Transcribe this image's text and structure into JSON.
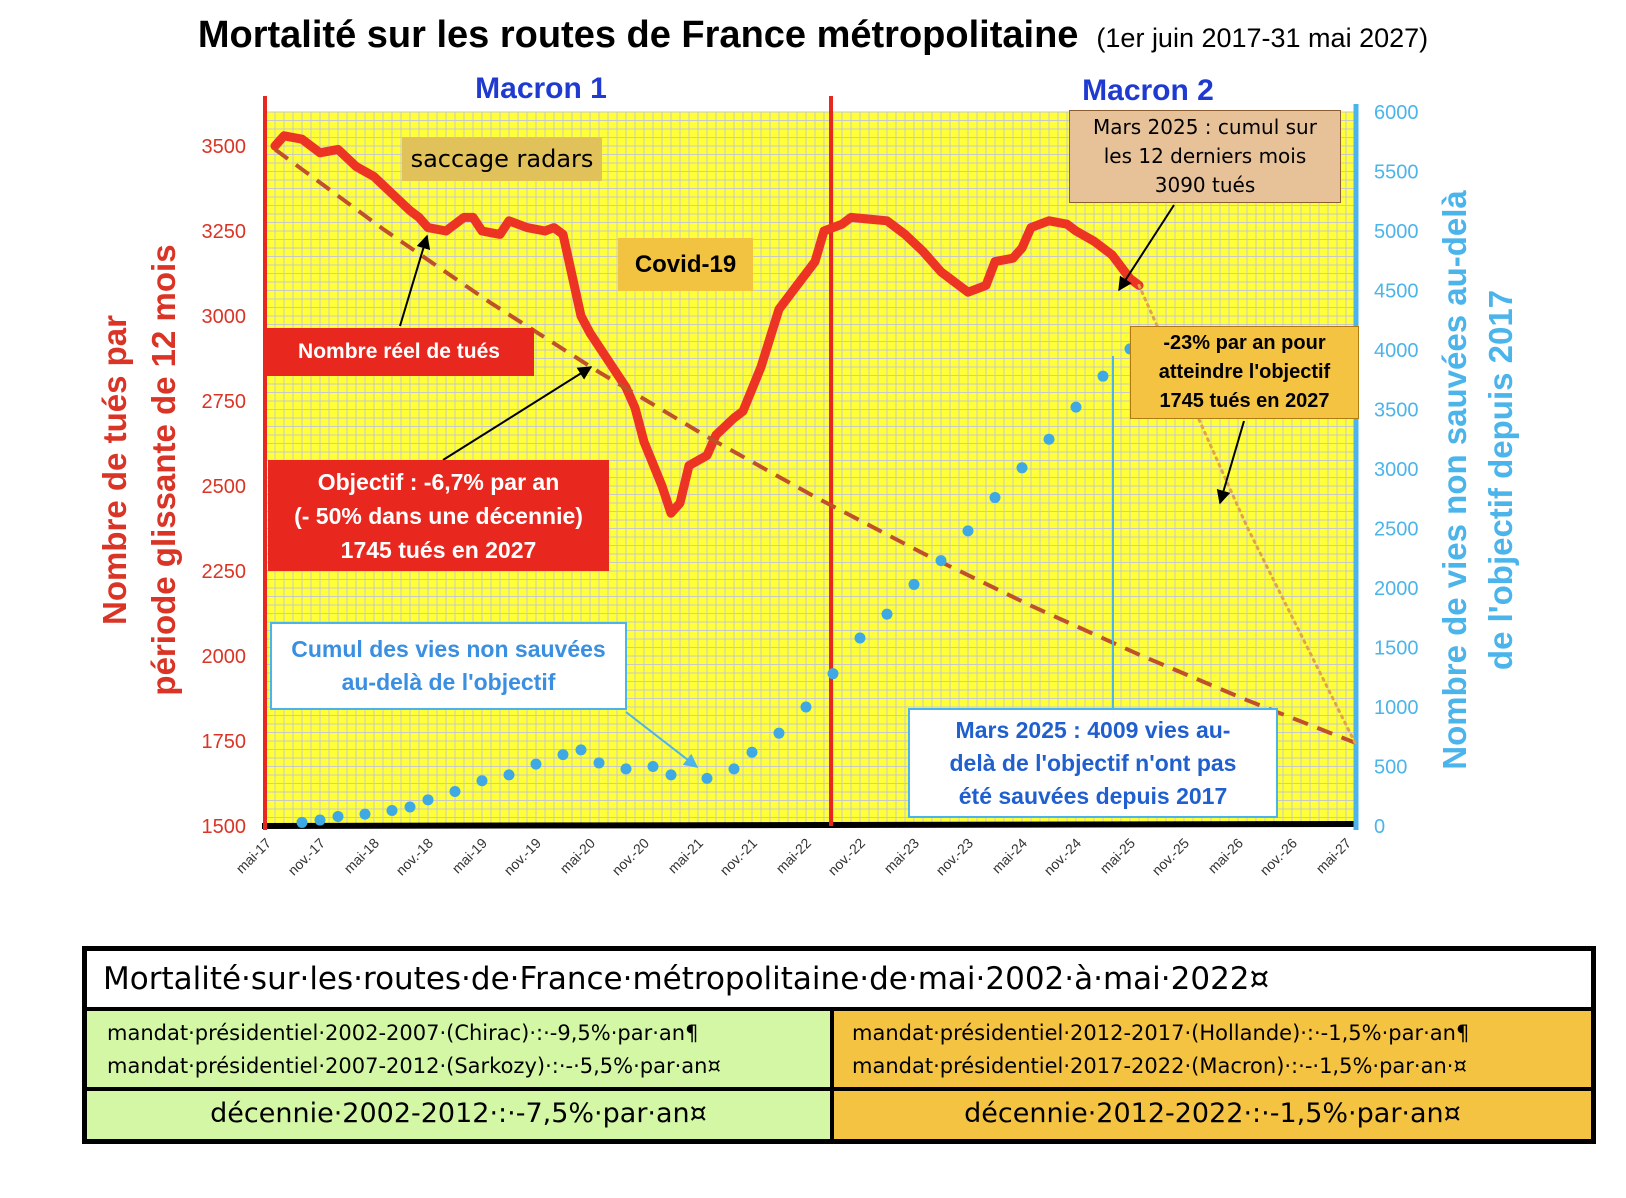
{
  "title": "Mortalité sur les routes de France métropolitaine",
  "subtitle": "(1er juin 2017-31 mai 2027)",
  "colors": {
    "plot_bg": "#ffff3a",
    "grid": "#c8c8c8",
    "deaths_line": "#ec3324",
    "objective_line": "#c0502a",
    "cumul_dots": "#3fa9e6",
    "left_axis": "#d93425",
    "right_axis": "#4bb4ea",
    "mandate_label": "#1f3ad1",
    "table_green": "#d3f7a4",
    "table_orange": "#f5c342"
  },
  "chart_data": {
    "type": "line",
    "x_labels": [
      "mai-17",
      "nov.-17",
      "mai-18",
      "nov.-18",
      "mai-19",
      "nov.-19",
      "mai-20",
      "nov.-20",
      "mai-21",
      "nov.-21",
      "mai-22",
      "nov.-22",
      "mai-23",
      "nov.-23",
      "mai-24",
      "nov.-24",
      "mai-25",
      "nov.-25",
      "mai-26",
      "nov.-26",
      "mai-27"
    ],
    "ylabel_left": "Nombre de tués par période glissante de 12 mois",
    "ylabel_right": "Nombre de vies non sauvées  au-delà de l'objectif depuis 2017",
    "y_left_ticks": [
      "1500",
      "1750",
      "2000",
      "2250",
      "2500",
      "2750",
      "3000",
      "3250",
      "3500"
    ],
    "y_right_ticks": [
      "0",
      "500",
      "1000",
      "1500",
      "2000",
      "2500",
      "3000",
      "3500",
      "4000",
      "4500",
      "5000",
      "5500",
      "6000"
    ],
    "ylim_left": [
      1500,
      3600
    ],
    "ylim_right": [
      0,
      6000
    ],
    "x_start": "2017-05",
    "x_end": "2027-05",
    "grid": true,
    "mandates": [
      {
        "label": "Macron 1",
        "start": "2017-05",
        "end": "2022-05"
      },
      {
        "label": "Macron 2",
        "start": "2022-05",
        "end": "2027-05"
      }
    ],
    "series": [
      {
        "name": "Nombre réel de tués",
        "axis": "left",
        "style": "solid",
        "points": [
          [
            "2017-06",
            3500
          ],
          [
            "2017-07",
            3530
          ],
          [
            "2017-09",
            3520
          ],
          [
            "2017-11",
            3480
          ],
          [
            "2018-01",
            3490
          ],
          [
            "2018-03",
            3440
          ],
          [
            "2018-05",
            3410
          ],
          [
            "2018-07",
            3360
          ],
          [
            "2018-09",
            3310
          ],
          [
            "2018-10",
            3290
          ],
          [
            "2018-11",
            3260
          ],
          [
            "2019-01",
            3250
          ],
          [
            "2019-03",
            3290
          ],
          [
            "2019-04",
            3290
          ],
          [
            "2019-05",
            3250
          ],
          [
            "2019-07",
            3240
          ],
          [
            "2019-08",
            3280
          ],
          [
            "2019-10",
            3260
          ],
          [
            "2019-12",
            3250
          ],
          [
            "2020-01",
            3260
          ],
          [
            "2020-02",
            3240
          ],
          [
            "2020-03",
            3120
          ],
          [
            "2020-04",
            3000
          ],
          [
            "2020-05",
            2950
          ],
          [
            "2020-07",
            2870
          ],
          [
            "2020-09",
            2790
          ],
          [
            "2020-10",
            2730
          ],
          [
            "2020-11",
            2630
          ],
          [
            "2021-01",
            2500
          ],
          [
            "2021-02",
            2420
          ],
          [
            "2021-03",
            2450
          ],
          [
            "2021-04",
            2560
          ],
          [
            "2021-06",
            2590
          ],
          [
            "2021-07",
            2650
          ],
          [
            "2021-09",
            2700
          ],
          [
            "2021-10",
            2720
          ],
          [
            "2021-12",
            2850
          ],
          [
            "2022-02",
            3020
          ],
          [
            "2022-04",
            3090
          ],
          [
            "2022-06",
            3160
          ],
          [
            "2022-07",
            3250
          ],
          [
            "2022-09",
            3270
          ],
          [
            "2022-10",
            3290
          ],
          [
            "2022-12",
            3285
          ],
          [
            "2023-02",
            3280
          ],
          [
            "2023-04",
            3240
          ],
          [
            "2023-06",
            3190
          ],
          [
            "2023-08",
            3130
          ],
          [
            "2023-09",
            3110
          ],
          [
            "2023-11",
            3070
          ],
          [
            "2024-01",
            3090
          ],
          [
            "2024-02",
            3160
          ],
          [
            "2024-04",
            3170
          ],
          [
            "2024-05",
            3200
          ],
          [
            "2024-06",
            3260
          ],
          [
            "2024-08",
            3280
          ],
          [
            "2024-10",
            3270
          ],
          [
            "2024-11",
            3250
          ],
          [
            "2025-01",
            3220
          ],
          [
            "2025-03",
            3180
          ],
          [
            "2025-05",
            3110
          ],
          [
            "2025-06",
            3090
          ]
        ]
      },
      {
        "name": "Objectif : -6,7% par an",
        "axis": "left",
        "style": "dashed",
        "points": [
          [
            "2017-06",
            3490
          ],
          [
            "2018-06",
            3256
          ],
          [
            "2019-06",
            3038
          ],
          [
            "2020-06",
            2835
          ],
          [
            "2021-06",
            2645
          ],
          [
            "2022-06",
            2468
          ],
          [
            "2023-06",
            2302
          ],
          [
            "2024-06",
            2148
          ],
          [
            "2025-06",
            2004
          ],
          [
            "2026-06",
            1870
          ],
          [
            "2027-06",
            1745
          ]
        ]
      },
      {
        "name": "-23% par an pour atteindre l'objectif",
        "axis": "left",
        "style": "dotted",
        "points": [
          [
            "2025-06",
            3090
          ],
          [
            "2026-06",
            2380
          ],
          [
            "2027-06",
            1745
          ]
        ]
      },
      {
        "name": "Cumul des vies non sauvées au-delà de l'objectif",
        "axis": "right",
        "style": "dots",
        "points": [
          [
            "2017-09",
            30
          ],
          [
            "2017-11",
            50
          ],
          [
            "2018-01",
            80
          ],
          [
            "2018-04",
            100
          ],
          [
            "2018-07",
            130
          ],
          [
            "2018-09",
            160
          ],
          [
            "2018-11",
            220
          ],
          [
            "2019-02",
            290
          ],
          [
            "2019-05",
            380
          ],
          [
            "2019-08",
            430
          ],
          [
            "2019-11",
            520
          ],
          [
            "2020-02",
            600
          ],
          [
            "2020-04",
            640
          ],
          [
            "2020-06",
            530
          ],
          [
            "2020-09",
            480
          ],
          [
            "2020-12",
            500
          ],
          [
            "2021-02",
            430
          ],
          [
            "2021-06",
            400
          ],
          [
            "2021-09",
            480
          ],
          [
            "2021-11",
            620
          ],
          [
            "2022-02",
            780
          ],
          [
            "2022-05",
            1000
          ],
          [
            "2022-08",
            1280
          ],
          [
            "2022-11",
            1580
          ],
          [
            "2023-02",
            1780
          ],
          [
            "2023-05",
            2030
          ],
          [
            "2023-08",
            2230
          ],
          [
            "2023-11",
            2480
          ],
          [
            "2024-02",
            2760
          ],
          [
            "2024-05",
            3010
          ],
          [
            "2024-08",
            3250
          ],
          [
            "2024-11",
            3520
          ],
          [
            "2025-02",
            3780
          ],
          [
            "2025-05",
            4009
          ]
        ]
      }
    ],
    "annotations": {
      "saccage": "saccage radars",
      "covid": "Covid-19",
      "real_deaths": "Nombre réel de tués",
      "objective": [
        "Objectif : -6,7% par an",
        "(- 50% dans une décennie)",
        "1745 tués en 2027"
      ],
      "mars_deaths": [
        "Mars 2025 : cumul sur",
        "les 12 derniers mois",
        "3090 tués"
      ],
      "minus23": [
        "-23% par an pour",
        "atteindre l'objectif",
        "1745 tués en 2027"
      ],
      "cumul": [
        "Cumul des vies non sauvées",
        "au-delà de l'objectif"
      ],
      "mars_lives": [
        "Mars 2025 : 4009 vies au-",
        "delà de l'objectif n'ont pas",
        "été sauvées depuis 2017"
      ]
    }
  },
  "table": {
    "header": "Mortalité·sur·les·routes·de·France·métropolitaine·de·mai·2002·à·mai·2022¤",
    "left_line1": "mandat·présidentiel·2002-2007·(Chirac)·:·-9,5%·par·an¶",
    "left_line2": "mandat·présidentiel·2007-2012·(Sarkozy)·:·-·5,5%·par·an¤",
    "right_line1": "mandat·présidentiel·2012-2017·(Hollande)·:·-1,5%·par·an¶",
    "right_line2": "mandat·présidentiel·2017-2022·(Macron)·:·-·1,5%·par·an·¤",
    "left_decade": "décennie·2002-2012·:·-7,5%·par·an¤",
    "right_decade": "décennie·2012-2022·:·-1,5%·par·an¤"
  }
}
